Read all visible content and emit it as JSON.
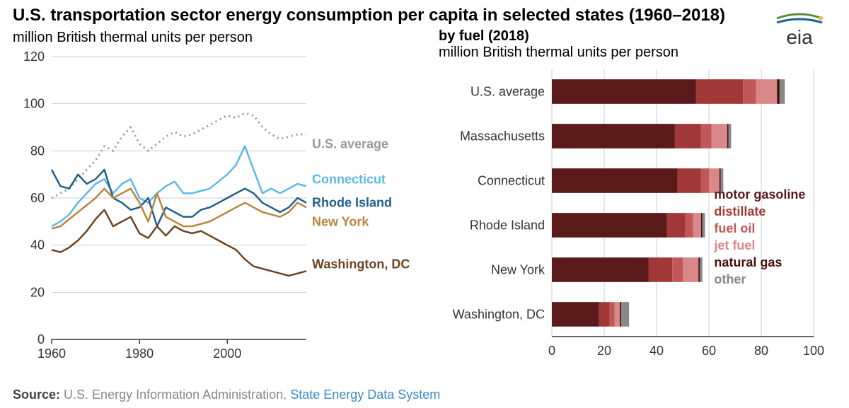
{
  "title": "U.S. transportation sector energy consumption per capita in selected states (1960–2018)",
  "subtitle": "million British thermal units per person",
  "logo_text": "eia",
  "line_chart": {
    "type": "line",
    "background_color": "#ffffff",
    "grid_color": "#cccccc",
    "axis_color": "#333333",
    "tick_fontsize": 18,
    "label_fontsize": 18,
    "xlim": [
      1960,
      2018
    ],
    "ylim": [
      0,
      120
    ],
    "xtick_step": 20,
    "xticks": [
      1960,
      1980,
      2000
    ],
    "ytick_step": 20,
    "yticks": [
      0,
      20,
      40,
      60,
      80,
      100,
      120
    ],
    "series": [
      {
        "name": "U.S. average",
        "color": "#999999",
        "style": "dotted",
        "line_width": 3,
        "label_y": 83,
        "data": [
          [
            1960,
            60
          ],
          [
            1962,
            62
          ],
          [
            1964,
            64
          ],
          [
            1966,
            68
          ],
          [
            1968,
            72
          ],
          [
            1970,
            76
          ],
          [
            1972,
            82
          ],
          [
            1974,
            80
          ],
          [
            1976,
            86
          ],
          [
            1978,
            90
          ],
          [
            1980,
            83
          ],
          [
            1982,
            80
          ],
          [
            1984,
            83
          ],
          [
            1986,
            86
          ],
          [
            1988,
            88
          ],
          [
            1990,
            86
          ],
          [
            1992,
            87
          ],
          [
            1994,
            89
          ],
          [
            1996,
            91
          ],
          [
            1998,
            93
          ],
          [
            2000,
            95
          ],
          [
            2002,
            94
          ],
          [
            2004,
            96
          ],
          [
            2006,
            95
          ],
          [
            2008,
            90
          ],
          [
            2010,
            87
          ],
          [
            2012,
            85
          ],
          [
            2014,
            86
          ],
          [
            2016,
            87
          ],
          [
            2018,
            87
          ]
        ]
      },
      {
        "name": "Connecticut",
        "color": "#5cb8e6",
        "style": "solid",
        "line_width": 2.5,
        "label_y": 68,
        "data": [
          [
            1960,
            48
          ],
          [
            1962,
            50
          ],
          [
            1964,
            53
          ],
          [
            1966,
            58
          ],
          [
            1968,
            62
          ],
          [
            1970,
            66
          ],
          [
            1972,
            68
          ],
          [
            1974,
            62
          ],
          [
            1976,
            66
          ],
          [
            1978,
            68
          ],
          [
            1980,
            60
          ],
          [
            1982,
            58
          ],
          [
            1984,
            62
          ],
          [
            1986,
            65
          ],
          [
            1988,
            67
          ],
          [
            1990,
            62
          ],
          [
            1992,
            62
          ],
          [
            1994,
            63
          ],
          [
            1996,
            64
          ],
          [
            1998,
            67
          ],
          [
            2000,
            70
          ],
          [
            2002,
            74
          ],
          [
            2004,
            82
          ],
          [
            2006,
            72
          ],
          [
            2008,
            62
          ],
          [
            2010,
            64
          ],
          [
            2012,
            62
          ],
          [
            2014,
            64
          ],
          [
            2016,
            66
          ],
          [
            2018,
            65
          ]
        ]
      },
      {
        "name": "Rhode Island",
        "color": "#1f5f8b",
        "style": "solid",
        "line_width": 2.5,
        "label_y": 58,
        "data": [
          [
            1960,
            72
          ],
          [
            1962,
            65
          ],
          [
            1964,
            64
          ],
          [
            1966,
            70
          ],
          [
            1968,
            66
          ],
          [
            1970,
            68
          ],
          [
            1972,
            72
          ],
          [
            1974,
            60
          ],
          [
            1976,
            58
          ],
          [
            1978,
            55
          ],
          [
            1980,
            56
          ],
          [
            1982,
            60
          ],
          [
            1984,
            48
          ],
          [
            1986,
            56
          ],
          [
            1988,
            54
          ],
          [
            1990,
            52
          ],
          [
            1992,
            52
          ],
          [
            1994,
            55
          ],
          [
            1996,
            56
          ],
          [
            1998,
            58
          ],
          [
            2000,
            60
          ],
          [
            2002,
            62
          ],
          [
            2004,
            64
          ],
          [
            2006,
            62
          ],
          [
            2008,
            58
          ],
          [
            2010,
            56
          ],
          [
            2012,
            54
          ],
          [
            2014,
            56
          ],
          [
            2016,
            60
          ],
          [
            2018,
            58
          ]
        ]
      },
      {
        "name": "New York",
        "color": "#b8863b",
        "style": "solid",
        "line_width": 2.5,
        "label_y": 50,
        "data": [
          [
            1960,
            47
          ],
          [
            1962,
            48
          ],
          [
            1964,
            51
          ],
          [
            1966,
            54
          ],
          [
            1968,
            57
          ],
          [
            1970,
            60
          ],
          [
            1972,
            64
          ],
          [
            1974,
            60
          ],
          [
            1976,
            62
          ],
          [
            1978,
            64
          ],
          [
            1980,
            58
          ],
          [
            1982,
            50
          ],
          [
            1984,
            62
          ],
          [
            1986,
            52
          ],
          [
            1988,
            50
          ],
          [
            1990,
            48
          ],
          [
            1992,
            48
          ],
          [
            1994,
            49
          ],
          [
            1996,
            50
          ],
          [
            1998,
            52
          ],
          [
            2000,
            54
          ],
          [
            2002,
            56
          ],
          [
            2004,
            58
          ],
          [
            2006,
            56
          ],
          [
            2008,
            54
          ],
          [
            2010,
            53
          ],
          [
            2012,
            52
          ],
          [
            2014,
            54
          ],
          [
            2016,
            58
          ],
          [
            2018,
            56
          ]
        ]
      },
      {
        "name": "Washington, DC",
        "color": "#6b4423",
        "style": "solid",
        "line_width": 2.5,
        "label_y": 32,
        "data": [
          [
            1960,
            38
          ],
          [
            1962,
            37
          ],
          [
            1964,
            39
          ],
          [
            1966,
            42
          ],
          [
            1968,
            46
          ],
          [
            1970,
            51
          ],
          [
            1972,
            55
          ],
          [
            1974,
            48
          ],
          [
            1976,
            50
          ],
          [
            1978,
            52
          ],
          [
            1980,
            45
          ],
          [
            1982,
            43
          ],
          [
            1984,
            48
          ],
          [
            1986,
            44
          ],
          [
            1988,
            48
          ],
          [
            1990,
            46
          ],
          [
            1992,
            45
          ],
          [
            1994,
            46
          ],
          [
            1996,
            44
          ],
          [
            1998,
            42
          ],
          [
            2000,
            40
          ],
          [
            2002,
            38
          ],
          [
            2004,
            34
          ],
          [
            2006,
            31
          ],
          [
            2008,
            30
          ],
          [
            2010,
            29
          ],
          [
            2012,
            28
          ],
          [
            2014,
            27
          ],
          [
            2016,
            28
          ],
          [
            2018,
            29
          ]
        ]
      }
    ]
  },
  "bar_chart": {
    "type": "stacked-bar-horizontal",
    "title": "by fuel (2018)",
    "subtitle": "million British thermal units per person",
    "background_color": "#ffffff",
    "grid_color": "#cccccc",
    "axis_color": "#333333",
    "tick_fontsize": 18,
    "label_fontsize": 18,
    "xlim": [
      0,
      100
    ],
    "xtick_step": 20,
    "xticks": [
      0,
      20,
      40,
      60,
      80,
      100
    ],
    "bar_height": 0.55,
    "categories": [
      "U.S. average",
      "Massachusetts",
      "Connecticut",
      "Rhode Island",
      "New York",
      "Washington, DC"
    ],
    "fuels": [
      {
        "name": "motor gasoline",
        "color": "#5a1a1a"
      },
      {
        "name": "distillate",
        "color": "#a03838"
      },
      {
        "name": "fuel oil",
        "color": "#c05858"
      },
      {
        "name": "jet fuel",
        "color": "#d88888"
      },
      {
        "name": "natural gas",
        "color": "#4a0d0d"
      },
      {
        "name": "other",
        "color": "#888888"
      }
    ],
    "values": {
      "U.S. average": [
        55,
        18,
        5,
        8,
        1,
        2
      ],
      "Massachusetts": [
        47,
        10,
        4,
        6,
        0.5,
        1
      ],
      "Connecticut": [
        48,
        9,
        3,
        4,
        0.5,
        1
      ],
      "Rhode Island": [
        44,
        7,
        3,
        3,
        0.5,
        1
      ],
      "New York": [
        37,
        9,
        4,
        6,
        0.5,
        1
      ],
      "Washington, DC": [
        18,
        4,
        2,
        2,
        0.5,
        3
      ]
    }
  },
  "legend_box": {
    "items": [
      "motor gasoline",
      "distillate",
      "fuel oil",
      "jet fuel",
      "natural gas",
      "other"
    ],
    "colors": [
      "#5a1a1a",
      "#a03838",
      "#c05858",
      "#d88888",
      "#4a0d0d",
      "#888888"
    ],
    "fontsize": 18,
    "font_weight": "bold"
  },
  "source": {
    "label": "Source:",
    "text": "U.S. Energy Information Administration,",
    "link_text": "State Energy Data System",
    "link_color": "#3b8bc4"
  }
}
